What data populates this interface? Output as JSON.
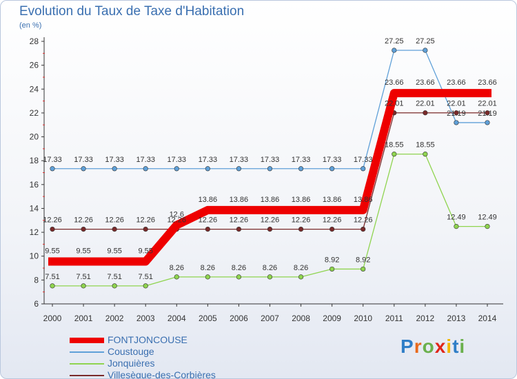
{
  "title": "Evolution du Taux de Taxe d'Habitation",
  "unit_label": "(en %)",
  "logo_text": "Proxiti",
  "logo_colors": [
    "#2f7ec7",
    "#e86a1c",
    "#6ab04c",
    "#e0261a",
    "#f2b600",
    "#2f7ec7",
    "#6ab04c"
  ],
  "chart_data": {
    "type": "line",
    "title": "Evolution du Taux de Taxe d'Habitation",
    "ylabel": "(en %)",
    "xlabel": "",
    "ylim": [
      6,
      28
    ],
    "y_ticks": [
      6,
      8,
      10,
      12,
      14,
      16,
      18,
      20,
      22,
      24,
      26,
      28
    ],
    "grid": false,
    "legend_position": "bottom-left",
    "x": [
      "2000",
      "2001",
      "2002",
      "2003",
      "2004",
      "2005",
      "2006",
      "2007",
      "2008",
      "2009",
      "2010",
      "2011",
      "2012",
      "2013",
      "2014"
    ],
    "series": [
      {
        "name": "FONTJONCOUSE",
        "color": "#ee0000",
        "emphasis": true,
        "values": [
          9.55,
          9.55,
          9.55,
          9.55,
          12.6,
          13.86,
          13.86,
          13.86,
          13.86,
          13.86,
          13.86,
          23.66,
          23.66,
          23.66,
          23.66
        ],
        "labels": [
          "9.55",
          "9.55",
          "9.55",
          "9.55",
          "12.6",
          "13.86",
          "13.86",
          "13.86",
          "13.86",
          "13.86",
          "13.86",
          "23.66",
          "23.66",
          "23.66",
          "23.66"
        ]
      },
      {
        "name": "Coustouge",
        "color": "#5fa0d8",
        "values": [
          17.33,
          17.33,
          17.33,
          17.33,
          17.33,
          17.33,
          17.33,
          17.33,
          17.33,
          17.33,
          17.33,
          27.25,
          27.25,
          21.19,
          21.19
        ],
        "labels": [
          "17.33",
          "17.33",
          "17.33",
          "17.33",
          "17.33",
          "17.33",
          "17.33",
          "17.33",
          "17.33",
          "17.33",
          "17.33",
          "27.25",
          "27.25",
          "21.19",
          "21.19"
        ]
      },
      {
        "name": "Jonquières",
        "color": "#8fd44f",
        "values": [
          7.51,
          7.51,
          7.51,
          7.51,
          8.26,
          8.26,
          8.26,
          8.26,
          8.26,
          8.92,
          8.92,
          18.55,
          18.55,
          12.49,
          12.49
        ],
        "labels": [
          "7.51",
          "7.51",
          "7.51",
          "7.51",
          "8.26",
          "8.26",
          "8.26",
          "8.26",
          "8.26",
          "8.92",
          "8.92",
          "18.55",
          "18.55",
          "12.49",
          "12.49"
        ]
      },
      {
        "name": "Villesèque-des-Corbières",
        "color": "#7a2a2a",
        "values": [
          12.26,
          12.26,
          12.26,
          12.26,
          12.26,
          12.26,
          12.26,
          12.26,
          12.26,
          12.26,
          12.26,
          22.01,
          22.01,
          22.01,
          22.01
        ],
        "labels": [
          "12.26",
          "12.26",
          "12.26",
          "12.26",
          "12.26",
          "12.26",
          "12.26",
          "12.26",
          "12.26",
          "12.26",
          "12.26",
          "22.01",
          "22.01",
          "22.01",
          "22.01"
        ]
      }
    ]
  }
}
